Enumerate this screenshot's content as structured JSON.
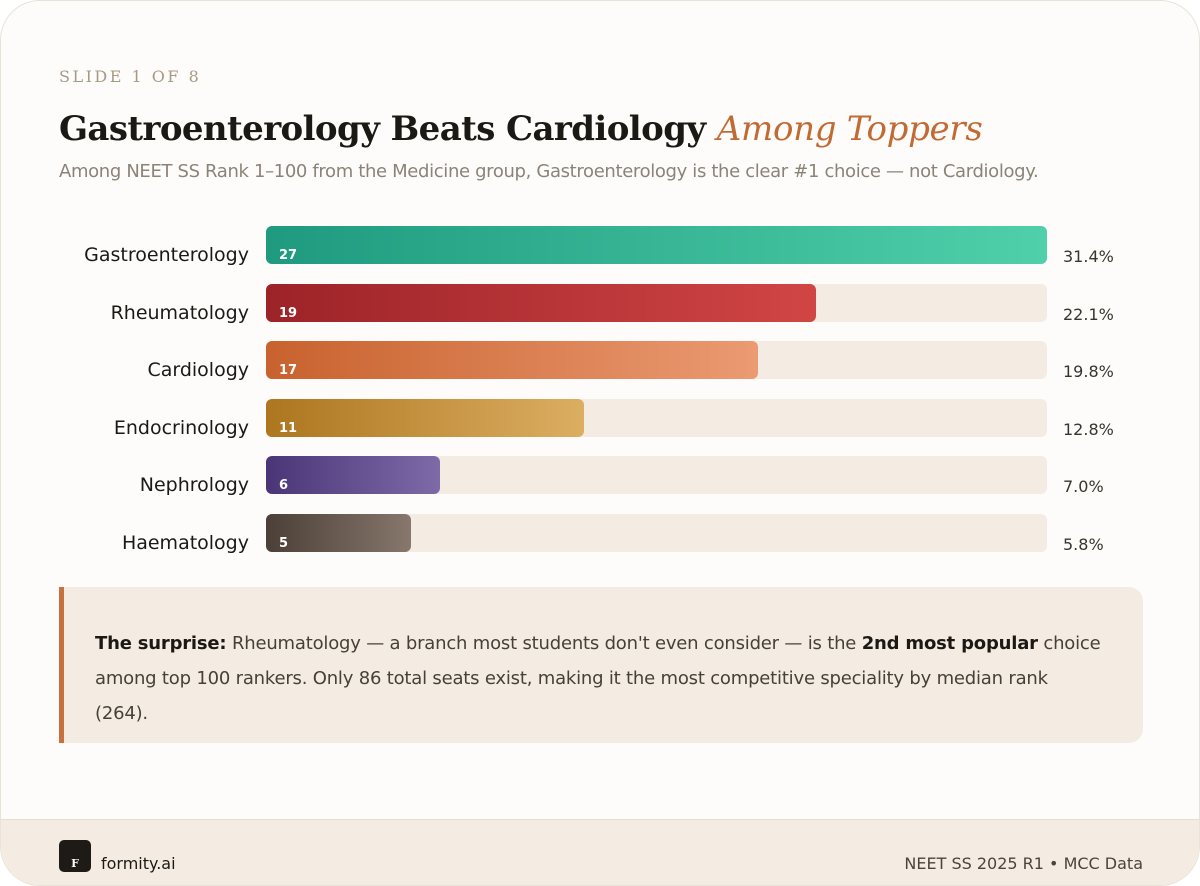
{
  "header": {
    "slide_label": "SLIDE 1 OF 8",
    "title_main": "Gastroenterology Beats Cardiology",
    "title_accent": "Among Toppers",
    "subtitle": "Among NEET SS Rank 1–100 from the Medicine group, Gastroenterology is the clear #1 choice — not Cardiology."
  },
  "chart_data": {
    "type": "bar",
    "orientation": "horizontal",
    "categories": [
      "Gastroenterology",
      "Rheumatology",
      "Cardiology",
      "Endocrinology",
      "Nephrology",
      "Haematology"
    ],
    "values": [
      27,
      19,
      17,
      11,
      6,
      5
    ],
    "percent_labels": [
      "31.4%",
      "22.1%",
      "19.8%",
      "12.8%",
      "7.0%",
      "5.8%"
    ],
    "xlim": [
      0,
      27
    ],
    "grid": false,
    "bar_colors": [
      [
        "#1f9a7f",
        "#4fd0aa"
      ],
      [
        "#9c2328",
        "#d14545"
      ],
      [
        "#c8622e",
        "#eb9a72"
      ],
      [
        "#ad761f",
        "#dcae62"
      ],
      [
        "#4a3677",
        "#7f6aa8"
      ],
      [
        "#4b3f37",
        "#87776c"
      ]
    ],
    "track_color": "#f4ece2"
  },
  "insight": {
    "lead": "The surprise:",
    "text_1": " Rheumatology — a branch most students don't even consider — is the ",
    "emphasis": "2nd most popular",
    "text_2": " choice among top 100 rankers. Only 86 total seats exist, making it the most competitive speciality by median rank (264)."
  },
  "footer": {
    "logo_letter": "F",
    "brand": "formity.ai",
    "source": "NEET SS 2025 R1 • MCC Data"
  },
  "colors": {
    "accent": "#c26a34",
    "insight_border": "#c8703e",
    "background": "#fdfcfa",
    "footer_bg": "#f4ece2"
  }
}
